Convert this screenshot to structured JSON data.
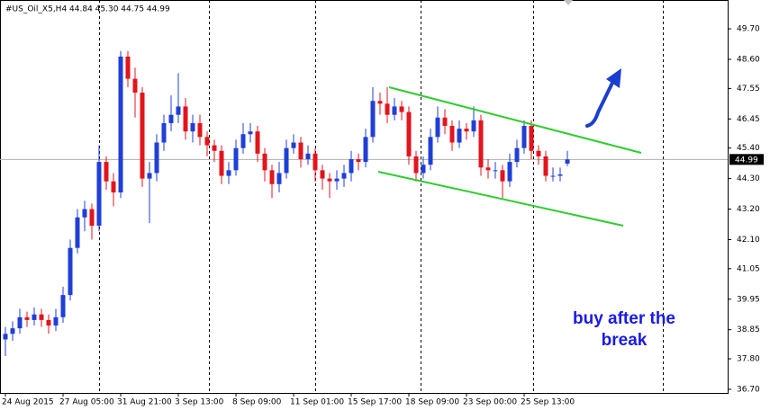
{
  "chart_data": {
    "type": "candlestick",
    "header": "#US_Oil_X5,H4  44.84 45.30 44.75 44.99",
    "last_price": 44.99,
    "annotations": [
      "buy after the",
      "break"
    ],
    "up_color": "#1f3fd6",
    "down_color": "#e3141c",
    "ylim": [
      36.57,
      50.74
    ],
    "yticks": [
      {
        "value": 49.7,
        "label": "49.70"
      },
      {
        "value": 48.6,
        "label": "48.60"
      },
      {
        "value": 47.55,
        "label": "47.55"
      },
      {
        "value": 46.45,
        "label": "46.45"
      },
      {
        "value": 45.4,
        "label": "45.40"
      },
      {
        "value": 44.3,
        "label": "44.30"
      },
      {
        "value": 43.2,
        "label": "43.20"
      },
      {
        "value": 42.1,
        "label": "42.10"
      },
      {
        "value": 41.05,
        "label": "41.05"
      },
      {
        "value": 39.95,
        "label": "39.95"
      },
      {
        "value": 38.85,
        "label": "38.85"
      },
      {
        "value": 37.8,
        "label": "37.80"
      },
      {
        "value": 36.7,
        "label": "36.70"
      }
    ],
    "categories": [
      "24 Aug 2015",
      null,
      null,
      null,
      null,
      null,
      null,
      null,
      "27 Aug 05:00",
      null,
      null,
      null,
      null,
      null,
      null,
      null,
      "31 Aug 21:00",
      null,
      null,
      null,
      null,
      null,
      null,
      null,
      "3 Sep 13:00",
      null,
      null,
      null,
      null,
      null,
      null,
      null,
      "8 Sep 09:00",
      null,
      null,
      null,
      null,
      null,
      null,
      null,
      "11 Sep 01:00",
      null,
      null,
      null,
      null,
      null,
      null,
      null,
      "15 Sep 17:00",
      null,
      null,
      null,
      null,
      null,
      null,
      null,
      "18 Sep 09:00",
      null,
      null,
      null,
      null,
      null,
      null,
      null,
      "23 Sep 00:00",
      null,
      null,
      null,
      null,
      null,
      null,
      null,
      "25 Sep 13:00",
      null,
      null,
      null,
      null,
      null,
      null
    ],
    "open": [
      38.5,
      38.7,
      38.9,
      39.3,
      39.2,
      39.4,
      39.2,
      39.0,
      39.3,
      40.1,
      41.8,
      42.9,
      43.2,
      42.6,
      44.9,
      44.2,
      43.8,
      48.7,
      47.9,
      47.4,
      44.3,
      44.5,
      45.6,
      46.3,
      46.6,
      46.9,
      46.0,
      46.3,
      45.8,
      45.5,
      45.3,
      44.4,
      44.6,
      45.4,
      45.9,
      46.0,
      45.2,
      44.6,
      44.1,
      44.5,
      45.4,
      45.6,
      45.0,
      45.2,
      44.6,
      44.3,
      44.2,
      44.3,
      44.5,
      45.0,
      44.9,
      45.8,
      47.1,
      47.0,
      46.6,
      46.9,
      46.7,
      45.1,
      44.5,
      44.8,
      45.8,
      46.5,
      46.2,
      45.6,
      46.1,
      46.0,
      46.4,
      44.7,
      44.6,
      44.6,
      44.2,
      44.9,
      45.4,
      46.2,
      45.3,
      45.1,
      44.4,
      44.4,
      44.84
    ],
    "high": [
      38.95,
      39.15,
      39.6,
      39.5,
      39.65,
      39.6,
      39.4,
      39.6,
      40.4,
      42.1,
      43.2,
      43.5,
      43.4,
      45.5,
      45.1,
      44.5,
      48.9,
      48.9,
      48.3,
      47.6,
      44.9,
      45.9,
      46.6,
      47.3,
      48.1,
      47.2,
      46.6,
      46.6,
      46.0,
      45.7,
      45.5,
      44.9,
      45.7,
      46.3,
      46.3,
      46.2,
      45.4,
      44.8,
      44.9,
      45.7,
      45.9,
      45.8,
      45.5,
      45.4,
      44.8,
      44.5,
      44.6,
      44.8,
      45.3,
      45.2,
      46.1,
      47.6,
      47.4,
      47.6,
      47.2,
      47.1,
      46.9,
      45.3,
      45.1,
      46.1,
      46.9,
      46.8,
      46.4,
      46.4,
      46.3,
      46.9,
      46.6,
      45.0,
      44.9,
      44.8,
      45.2,
      45.7,
      46.4,
      46.4,
      45.5,
      45.3,
      44.7,
      44.7,
      45.3
    ],
    "low": [
      37.9,
      38.45,
      38.7,
      38.95,
      39.0,
      38.95,
      38.7,
      38.8,
      39.1,
      39.9,
      41.6,
      42.4,
      42.1,
      42.4,
      43.9,
      43.3,
      43.6,
      47.6,
      46.5,
      44.0,
      42.7,
      44.2,
      45.3,
      46.0,
      46.3,
      45.7,
      45.6,
      45.5,
      45.1,
      44.9,
      44.1,
      44.1,
      44.4,
      45.2,
      45.6,
      44.9,
      44.2,
      43.6,
      43.8,
      44.3,
      45.2,
      44.7,
      44.8,
      44.2,
      43.9,
      43.6,
      43.9,
      44.0,
      44.2,
      44.6,
      44.7,
      45.6,
      46.6,
      46.3,
      46.4,
      46.4,
      44.8,
      44.2,
      44.3,
      44.6,
      45.6,
      45.9,
      45.3,
      45.4,
      45.7,
      45.8,
      44.4,
      44.3,
      44.3,
      43.6,
      44.0,
      44.7,
      45.2,
      45.0,
      44.8,
      44.2,
      44.2,
      44.2,
      44.75
    ],
    "close": [
      38.7,
      38.9,
      39.3,
      39.2,
      39.4,
      39.2,
      39.0,
      39.3,
      40.1,
      41.8,
      42.9,
      43.2,
      42.6,
      44.9,
      44.2,
      43.8,
      48.7,
      47.9,
      47.4,
      44.3,
      44.5,
      45.6,
      46.3,
      46.6,
      46.9,
      46.0,
      46.3,
      45.8,
      45.5,
      45.3,
      44.4,
      44.6,
      45.4,
      45.9,
      46.0,
      45.2,
      44.6,
      44.1,
      44.5,
      45.4,
      45.6,
      45.0,
      45.2,
      44.6,
      44.3,
      44.2,
      44.3,
      44.5,
      45.0,
      44.9,
      45.8,
      47.1,
      47.0,
      46.6,
      46.9,
      46.7,
      45.1,
      44.5,
      44.8,
      45.8,
      46.5,
      46.2,
      45.6,
      46.1,
      46.0,
      46.4,
      44.7,
      44.6,
      44.6,
      44.2,
      44.9,
      45.4,
      46.2,
      45.3,
      45.1,
      44.4,
      44.4,
      44.45,
      44.99
    ]
  }
}
